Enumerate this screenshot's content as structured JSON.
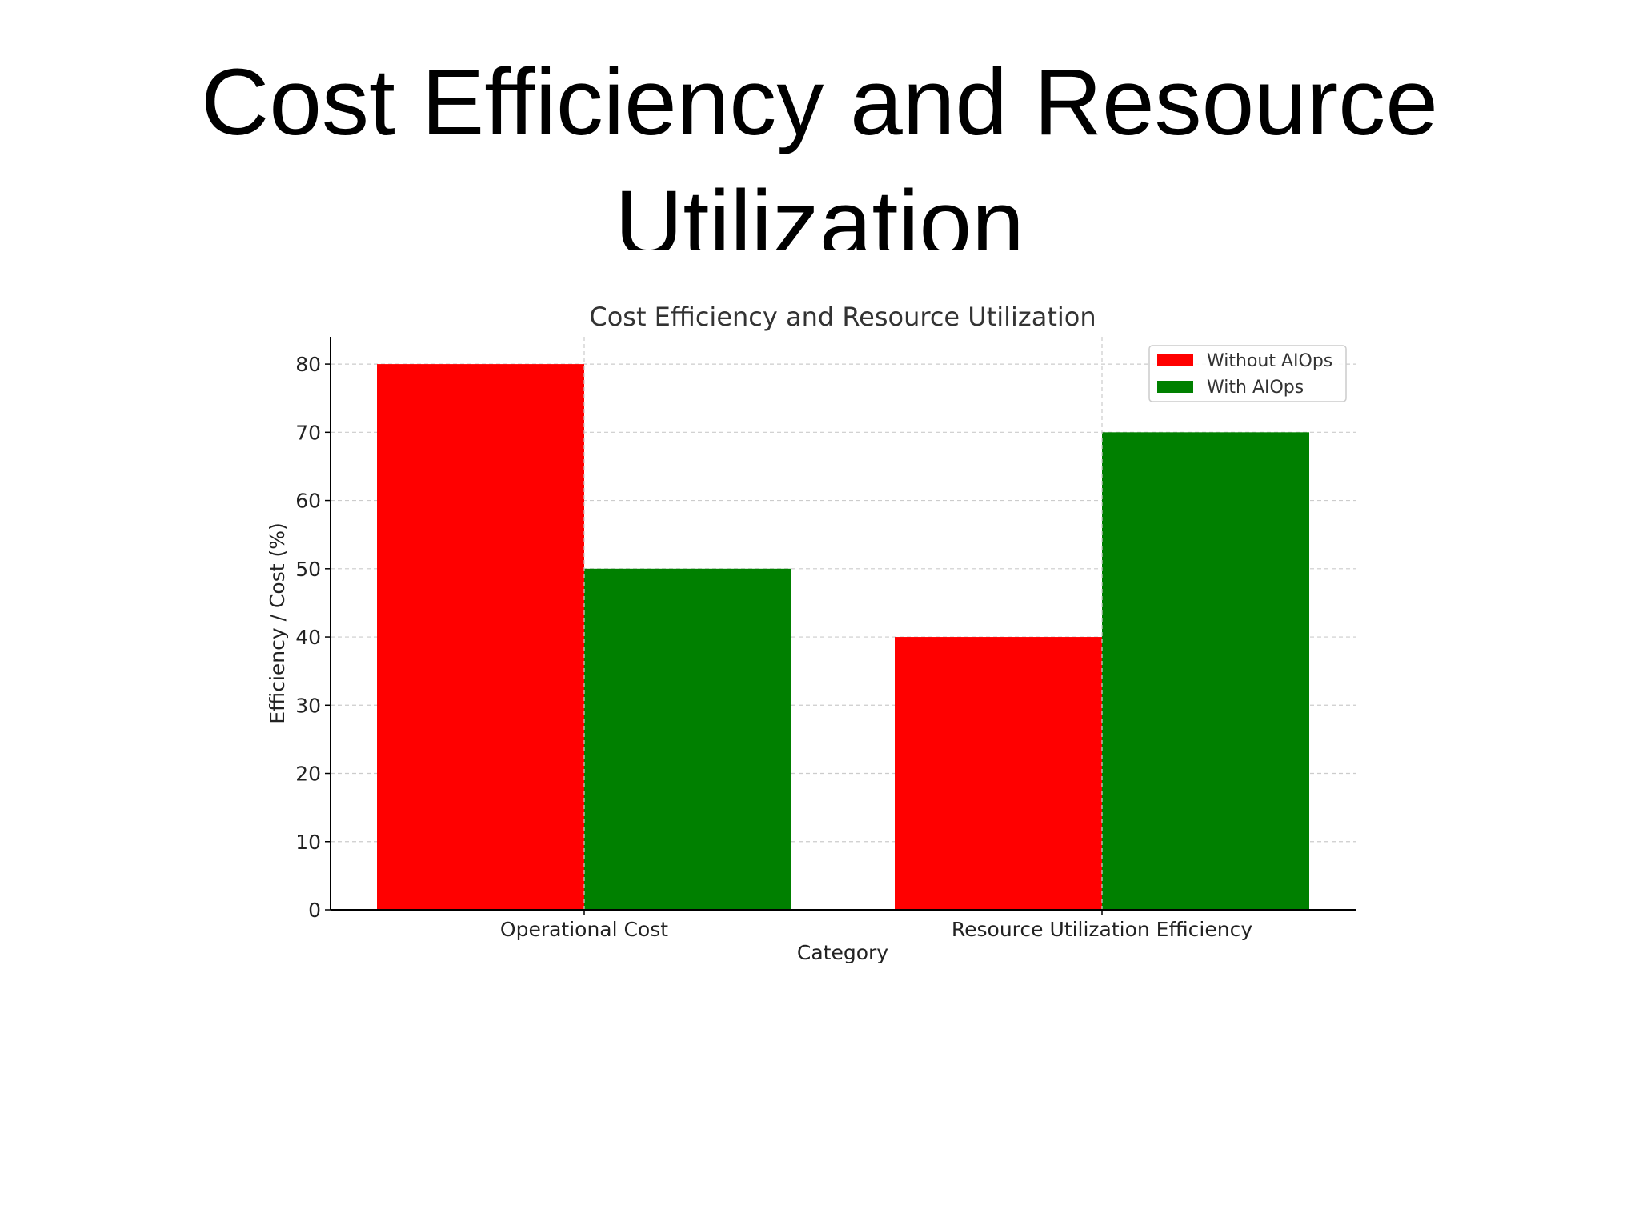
{
  "slide": {
    "title": "Cost Efficiency and Resource Utilization"
  },
  "chart_data": {
    "type": "bar",
    "title": "Cost Efficiency and Resource Utilization",
    "xlabel": "Category",
    "ylabel": "Efficiency / Cost (%)",
    "categories": [
      "Operational Cost",
      "Resource Utilization Efficiency"
    ],
    "series": [
      {
        "name": "Without AIOps",
        "values": [
          80,
          40
        ],
        "color": "#ff0000"
      },
      {
        "name": "With AIOps",
        "values": [
          50,
          70
        ],
        "color": "#008000"
      }
    ],
    "ylim": [
      0,
      84
    ],
    "yticks": [
      0,
      10,
      20,
      30,
      40,
      50,
      60,
      70,
      80
    ],
    "grid": true,
    "legend_position": "top-right"
  }
}
